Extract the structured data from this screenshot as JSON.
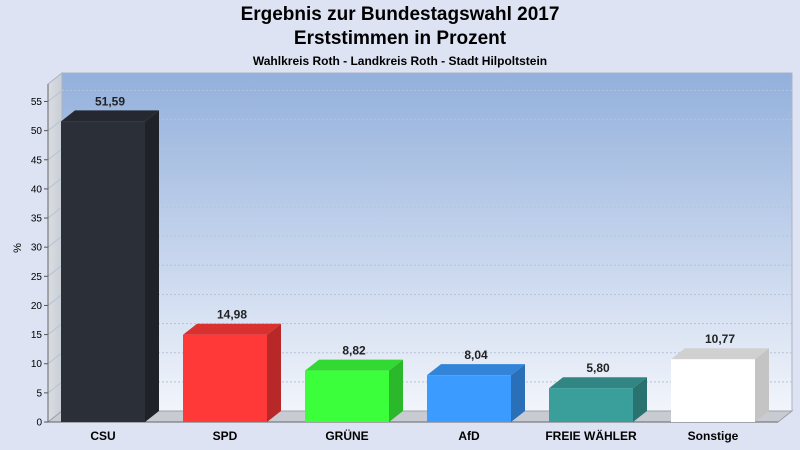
{
  "chart_data": {
    "type": "bar",
    "title": "Ergebnis zur Bundestagswahl 2017",
    "title_line2": "Erststimmen in Prozent",
    "subtitle": "Wahlkreis Roth - Landkreis Roth - Stadt Hilpoltstein",
    "ylabel": "%",
    "xlabel": "",
    "ylim": [
      0,
      58
    ],
    "yticks": [
      0,
      5,
      10,
      15,
      20,
      25,
      30,
      35,
      40,
      45,
      50,
      55
    ],
    "grid": true,
    "categories": [
      "CSU",
      "SPD",
      "GRÜNE",
      "AfD",
      "FREIE WÄHLER",
      "Sonstige"
    ],
    "values": [
      51.59,
      14.98,
      8.82,
      8.04,
      5.8,
      10.77
    ],
    "value_labels": [
      "51,59",
      "14,98",
      "8,82",
      "8,04",
      "5,80",
      "10,77"
    ],
    "colors": [
      "#2b2f38",
      "#ff3838",
      "#3cff3c",
      "#3b9bff",
      "#3a9e9a",
      "#ffffff"
    ]
  }
}
